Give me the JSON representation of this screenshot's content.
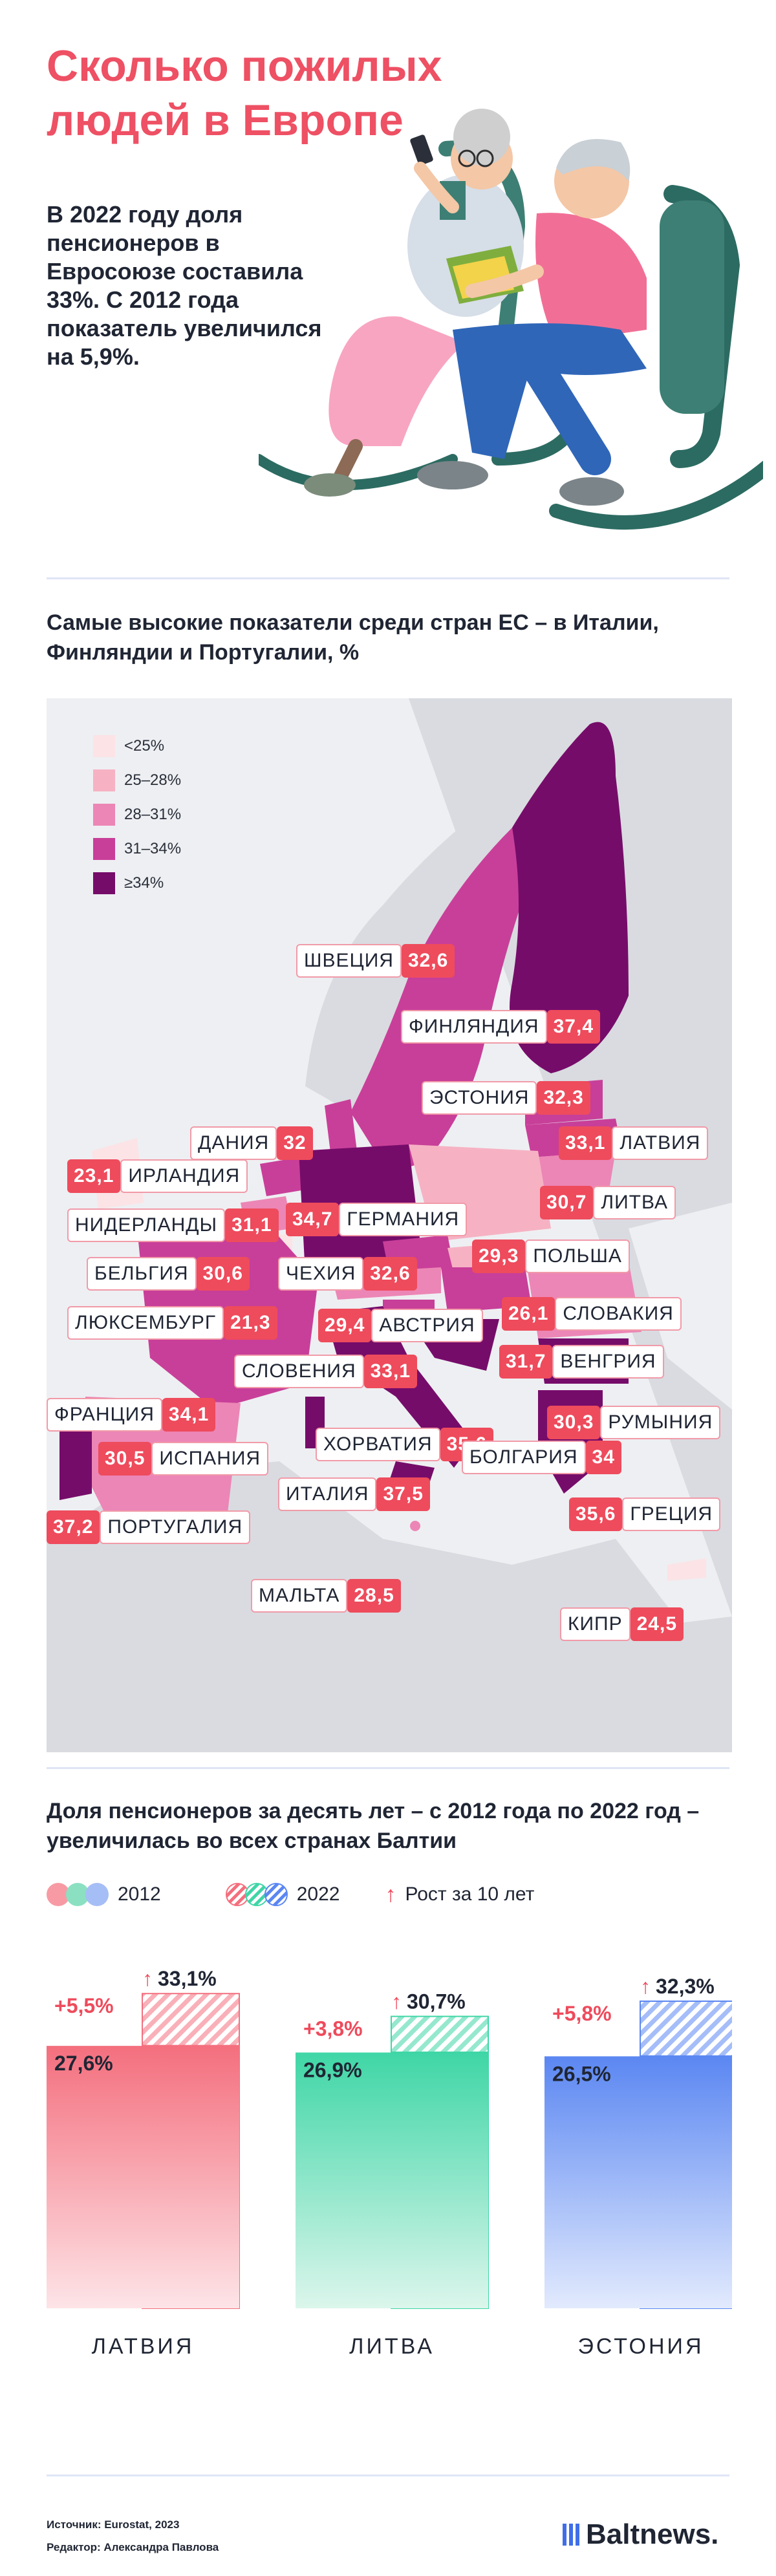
{
  "header": {
    "title": "Сколько пожилых людей в Европе",
    "lede": "В 2022 году доля пенсионеров в Евросоюзе составила 33%. С 2012 года показатель увеличился на 5,9%."
  },
  "map_section": {
    "title": "Самые высокие показатели среди стран ЕС – в Италии, Финляндии и Португалии, %",
    "legend": [
      {
        "label": "<25%",
        "color": "#fbe3e6"
      },
      {
        "label": "25–28%",
        "color": "#f6b2c3"
      },
      {
        "label": "28–31%",
        "color": "#ec86b6"
      },
      {
        "label": "31–34%",
        "color": "#c83f99"
      },
      {
        "label": "≥34%",
        "color": "#760c6a"
      }
    ]
  },
  "bar_section": {
    "title": "Доля пенсионеров за десять лет – с 2012 года по 2022 год – увеличилась во всех странах Балтии",
    "legend_2012": "2012",
    "legend_2022": "2022",
    "legend_growth": "Рост за 10 лет",
    "growth_icon": "arrow-up-icon"
  },
  "chart_data": [
    {
      "type": "table",
      "title": "Самые высокие показатели среди стран ЕС – в Италии, Финляндии и Португалии, %",
      "columns": [
        "country",
        "value"
      ],
      "rows": [
        [
          "ШВЕЦИЯ",
          "32,6"
        ],
        [
          "ФИНЛЯНДИЯ",
          "37,4"
        ],
        [
          "ЭСТОНИЯ",
          "32,3"
        ],
        [
          "ДАНИЯ",
          "32"
        ],
        [
          "ЛАТВИЯ",
          "33,1"
        ],
        [
          "ИРЛАНДИЯ",
          "23,1"
        ],
        [
          "ЛИТВА",
          "30,7"
        ],
        [
          "НИДЕРЛАНДЫ",
          "31,1"
        ],
        [
          "ГЕРМАНИЯ",
          "34,7"
        ],
        [
          "ПОЛЬША",
          "29,3"
        ],
        [
          "БЕЛЬГИЯ",
          "30,6"
        ],
        [
          "ЧЕХИЯ",
          "32,6"
        ],
        [
          "ЛЮКСЕМБУРГ",
          "21,3"
        ],
        [
          "АВСТРИЯ",
          "29,4"
        ],
        [
          "СЛОВАКИЯ",
          "26,1"
        ],
        [
          "СЛОВЕНИЯ",
          "33,1"
        ],
        [
          "ВЕНГРИЯ",
          "31,7"
        ],
        [
          "ФРАНЦИЯ",
          "34,1"
        ],
        [
          "РУМЫНИЯ",
          "30,3"
        ],
        [
          "ХОРВАТИЯ",
          "35,6"
        ],
        [
          "ИСПАНИЯ",
          "30,5"
        ],
        [
          "БОЛГАРИЯ",
          "34"
        ],
        [
          "ИТАЛИЯ",
          "37,5"
        ],
        [
          "ГРЕЦИЯ",
          "35,6"
        ],
        [
          "ПОРТУГАЛИЯ",
          "37,2"
        ],
        [
          "МАЛЬТА",
          "28,5"
        ],
        [
          "КИПР",
          "24,5"
        ]
      ]
    },
    {
      "type": "bar",
      "title": "Доля пенсионеров за десять лет – с 2012 года по 2022 год – увеличилась во всех странах Балтии",
      "categories": [
        "ЛАТВИЯ",
        "ЛИТВА",
        "ЭСТОНИЯ"
      ],
      "series": [
        {
          "name": "2012",
          "values": [
            27.6,
            26.9,
            26.5
          ],
          "labels": [
            "27,6%",
            "26,9%",
            "26,5%"
          ]
        },
        {
          "name": "2022",
          "values": [
            33.1,
            30.7,
            32.3
          ],
          "labels": [
            "33,1%",
            "30,7%",
            "32,3%"
          ]
        }
      ],
      "growth_labels": [
        "+5,5%",
        "+3,8%",
        "+5,8%"
      ],
      "colors": {
        "ЛАТВИЯ": "#f46f7e",
        "ЛИТВА": "#3fd6a6",
        "ЭСТОНИЯ": "#5b87f2"
      },
      "ylim": [
        0,
        34
      ]
    }
  ],
  "footer": {
    "source": "Источник: Eurostat, 2023",
    "editor": "Редактор: Александра Павлова",
    "brand": "Baltnews."
  }
}
